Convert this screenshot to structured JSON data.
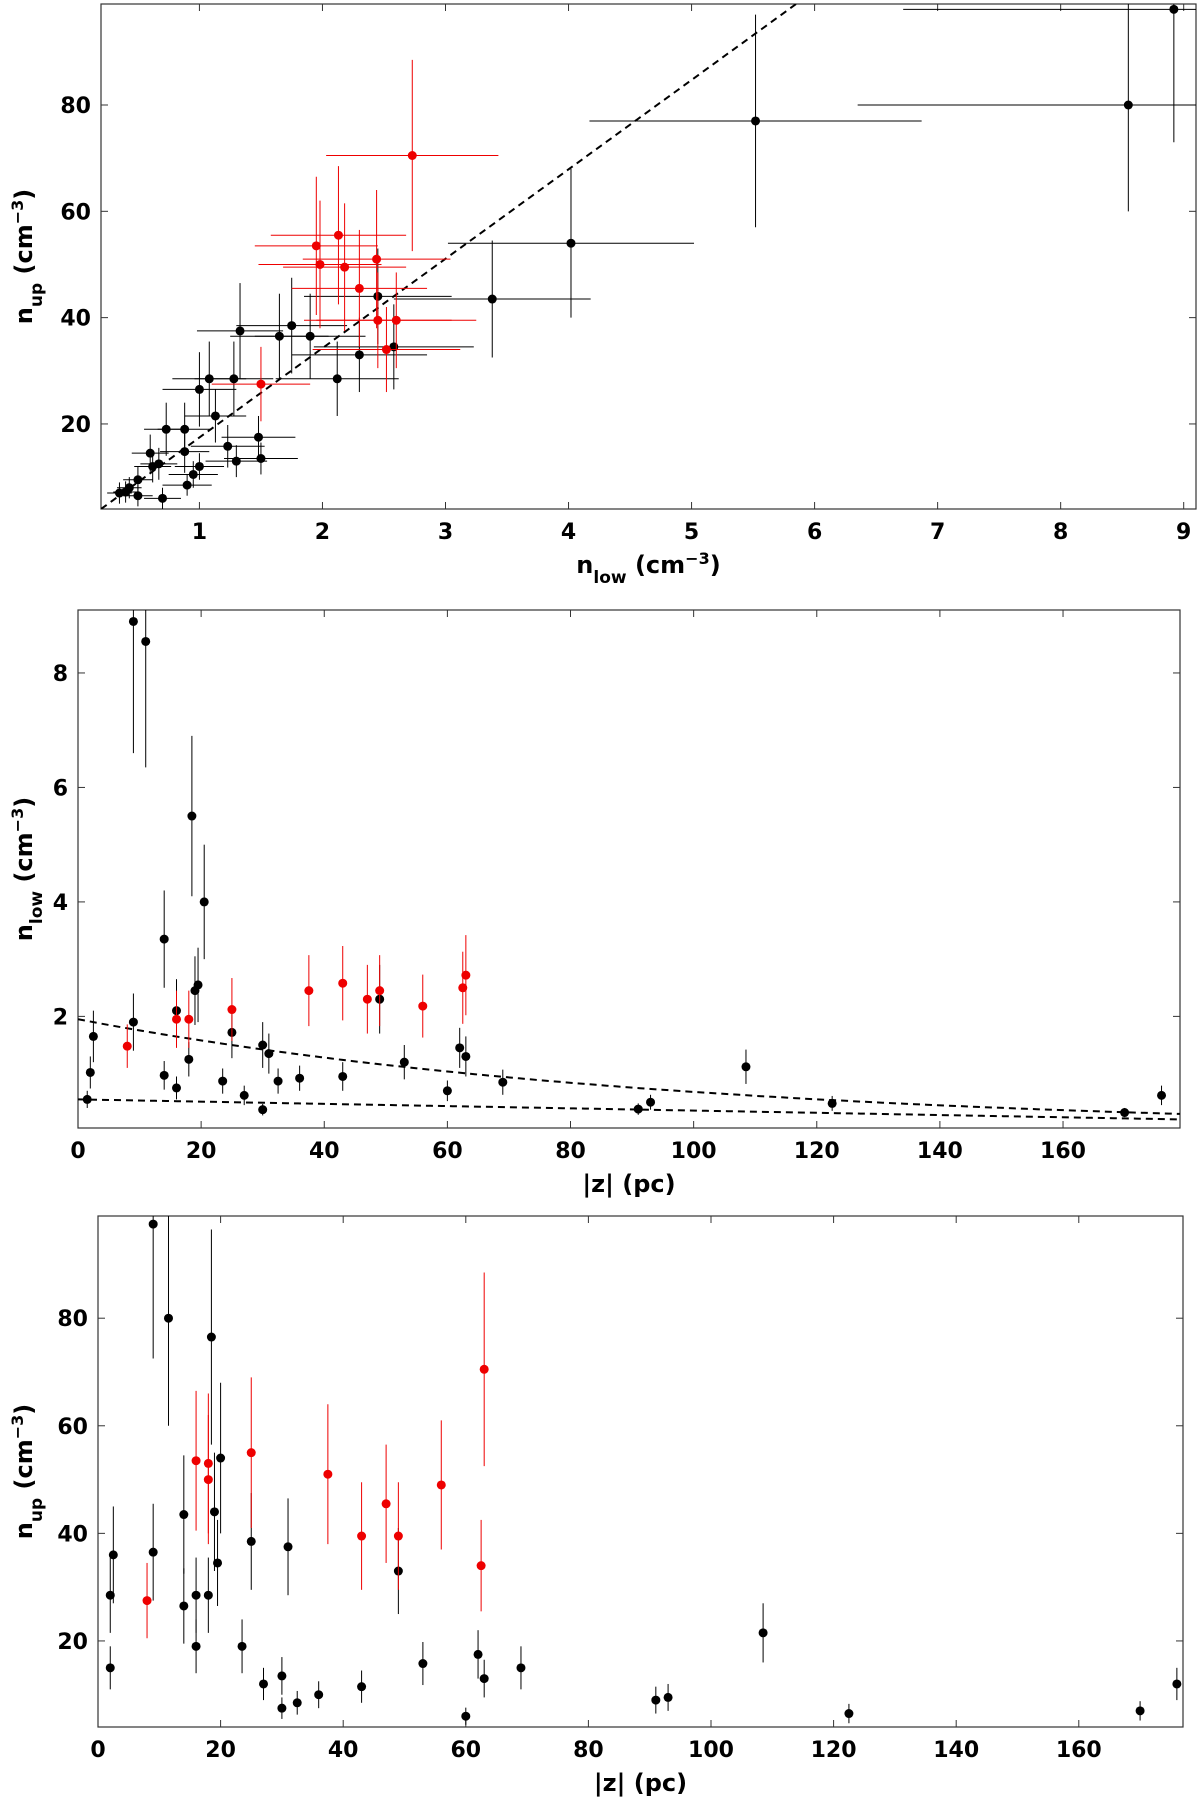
{
  "chart_data": [
    {
      "type": "scatter",
      "id": "panel1",
      "title": "",
      "xlabel": {
        "main": "n",
        "sub": "low",
        "unit": " (cm",
        "sup": "−3",
        "close": ")"
      },
      "ylabel": {
        "main": "n",
        "sub": "up",
        "unit": " (cm",
        "sup": "−3",
        "close": ")"
      },
      "xlim": [
        0.2,
        9.1
      ],
      "ylim": [
        4,
        99
      ],
      "xticks": [
        1,
        2,
        3,
        4,
        5,
        6,
        7,
        8,
        9
      ],
      "yticks": [
        20,
        40,
        60,
        80
      ],
      "colors": {
        "black": "#000000",
        "red": "#ee0000"
      },
      "lines": [
        {
          "name": "one-to-one-ratio-line",
          "x": [
            0.2,
            5.85
          ],
          "y": [
            4,
            99
          ],
          "style": "dashed"
        }
      ],
      "series": [
        {
          "name": "black",
          "points": [
            [
              8.92,
              98,
              2.2,
              25
            ],
            [
              8.55,
              80,
              2.2,
              20
            ],
            [
              5.52,
              77,
              1.35,
              20
            ],
            [
              4.02,
              54,
              1.0,
              14
            ],
            [
              3.38,
              43.5,
              0.8,
              11
            ],
            [
              2.45,
              44,
              0.6,
              9
            ],
            [
              2.3,
              33,
              0.55,
              7
            ],
            [
              2.58,
              34.5,
              0.65,
              8
            ],
            [
              2.12,
              28.5,
              0.5,
              7
            ],
            [
              1.9,
              36.5,
              0.45,
              8
            ],
            [
              1.75,
              38.5,
              0.45,
              9
            ],
            [
              1.65,
              36.5,
              0.4,
              8
            ],
            [
              1.33,
              37.5,
              0.35,
              9
            ],
            [
              1.28,
              28.5,
              0.32,
              7
            ],
            [
              1.08,
              28.5,
              0.3,
              7
            ],
            [
              1.0,
              26.5,
              0.3,
              7
            ],
            [
              1.13,
              21.5,
              0.25,
              5
            ],
            [
              1.48,
              17.5,
              0.3,
              4
            ],
            [
              1.5,
              13.5,
              0.3,
              3
            ],
            [
              1.23,
              15.8,
              0.3,
              4
            ],
            [
              1.3,
              13.0,
              0.25,
              3
            ],
            [
              0.95,
              10.5,
              0.2,
              2.5
            ],
            [
              1.0,
              12.0,
              0.2,
              2.5
            ],
            [
              0.9,
              8.5,
              0.2,
              2
            ],
            [
              0.88,
              19.0,
              0.22,
              5
            ],
            [
              0.88,
              14.8,
              0.2,
              4
            ],
            [
              0.73,
              19.0,
              0.18,
              5
            ],
            [
              0.6,
              14.5,
              0.15,
              3.5
            ],
            [
              0.62,
              12.0,
              0.15,
              3
            ],
            [
              0.67,
              12.5,
              0.15,
              3
            ],
            [
              0.5,
              9.5,
              0.12,
              2.5
            ],
            [
              0.5,
              6.5,
              0.12,
              2
            ],
            [
              0.7,
              6.0,
              0.15,
              2
            ],
            [
              0.43,
              8.0,
              0.1,
              2
            ],
            [
              0.35,
              7.0,
              0.1,
              2
            ],
            [
              0.4,
              7.2,
              0.1,
              2
            ]
          ]
        },
        {
          "name": "red",
          "points": [
            [
              2.73,
              70.5,
              0.7,
              18
            ],
            [
              1.95,
              53.5,
              0.5,
              13
            ],
            [
              2.13,
              55.5,
              0.55,
              13
            ],
            [
              1.98,
              50.0,
              0.5,
              12
            ],
            [
              2.18,
              49.5,
              0.5,
              12
            ],
            [
              2.44,
              51.0,
              0.6,
              13
            ],
            [
              2.3,
              45.5,
              0.55,
              11
            ],
            [
              2.45,
              39.5,
              0.6,
              9
            ],
            [
              2.6,
              39.5,
              0.65,
              9
            ],
            [
              2.52,
              34.0,
              0.6,
              8
            ],
            [
              1.5,
              27.5,
              0.4,
              7
            ]
          ]
        }
      ]
    },
    {
      "type": "scatter",
      "id": "panel2",
      "title": "",
      "xlabel": {
        "main": "|z| (pc)"
      },
      "ylabel": {
        "main": "n",
        "sub": "low",
        "unit": " (cm",
        "sup": "−3",
        "close": ")"
      },
      "xlim": [
        0,
        179
      ],
      "ylim": [
        0.05,
        9.1
      ],
      "xticks": [
        0,
        20,
        40,
        60,
        80,
        100,
        120,
        140,
        160
      ],
      "yticks": [
        2,
        4,
        6,
        8
      ],
      "colors": {
        "black": "#000000",
        "red": "#ee0000"
      },
      "curves": [
        {
          "name": "upper-fit-curve",
          "model": "exp",
          "a": 1.95,
          "scale": 95,
          "style": "dashed"
        },
        {
          "name": "lower-fit-curve",
          "model": "linear",
          "y0": 0.55,
          "y1": 0.2,
          "style": "dashed"
        }
      ],
      "series": [
        {
          "name": "black",
          "points": [
            [
              9.0,
              8.9,
              2.3
            ],
            [
              11.0,
              8.55,
              2.2
            ],
            [
              18.5,
              5.5,
              1.4
            ],
            [
              20.5,
              4.0,
              1.0
            ],
            [
              14.0,
              3.35,
              0.85
            ],
            [
              19.5,
              2.55,
              0.65
            ],
            [
              19.0,
              2.45,
              0.6
            ],
            [
              49.0,
              2.3,
              0.6
            ],
            [
              16.0,
              2.1,
              0.55
            ],
            [
              9.0,
              1.9,
              0.5
            ],
            [
              2.5,
              1.65,
              0.45
            ],
            [
              25.0,
              1.72,
              0.45
            ],
            [
              30.0,
              1.5,
              0.4
            ],
            [
              31.0,
              1.35,
              0.35
            ],
            [
              62.0,
              1.45,
              0.35
            ],
            [
              63.0,
              1.3,
              0.35
            ],
            [
              53.0,
              1.2,
              0.3
            ],
            [
              18.0,
              1.25,
              0.3
            ],
            [
              108.5,
              1.12,
              0.3
            ],
            [
              2.0,
              1.02,
              0.28
            ],
            [
              14.0,
              0.97,
              0.25
            ],
            [
              23.5,
              0.87,
              0.22
            ],
            [
              32.5,
              0.87,
              0.22
            ],
            [
              36.0,
              0.92,
              0.22
            ],
            [
              43.0,
              0.95,
              0.25
            ],
            [
              69.0,
              0.85,
              0.22
            ],
            [
              16.0,
              0.75,
              0.2
            ],
            [
              27.0,
              0.62,
              0.17
            ],
            [
              60.0,
              0.7,
              0.18
            ],
            [
              1.5,
              0.55,
              0.15
            ],
            [
              30.0,
              0.37,
              0.1
            ],
            [
              91.0,
              0.38,
              0.1
            ],
            [
              93.0,
              0.5,
              0.13
            ],
            [
              122.5,
              0.48,
              0.13
            ],
            [
              170.0,
              0.32,
              0.08
            ],
            [
              176.0,
              0.62,
              0.17
            ]
          ]
        },
        {
          "name": "red",
          "points": [
            [
              8.0,
              1.48,
              0.38
            ],
            [
              16.0,
              1.95,
              0.5
            ],
            [
              18.0,
              1.95,
              0.5
            ],
            [
              25.0,
              2.12,
              0.55
            ],
            [
              37.5,
              2.45,
              0.62
            ],
            [
              43.0,
              2.58,
              0.65
            ],
            [
              47.0,
              2.3,
              0.6
            ],
            [
              49.0,
              2.45,
              0.62
            ],
            [
              56.0,
              2.18,
              0.55
            ],
            [
              62.5,
              2.5,
              0.63
            ],
            [
              63.0,
              2.72,
              0.7
            ]
          ]
        }
      ]
    },
    {
      "type": "scatter",
      "id": "panel3",
      "title": "",
      "xlabel": {
        "main": "|z| (pc)"
      },
      "ylabel": {
        "main": "n",
        "sub": "up",
        "unit": " (cm",
        "sup": "−3",
        "close": ")"
      },
      "xlim": [
        0,
        177
      ],
      "ylim": [
        4,
        99
      ],
      "xticks": [
        0,
        20,
        40,
        60,
        80,
        100,
        120,
        140,
        160
      ],
      "yticks": [
        20,
        40,
        60,
        80
      ],
      "colors": {
        "black": "#000000",
        "red": "#ee0000"
      },
      "series": [
        {
          "name": "black",
          "points": [
            [
              9.0,
              97.5,
              25
            ],
            [
              11.5,
              80.0,
              20
            ],
            [
              18.5,
              76.5,
              20
            ],
            [
              20.0,
              54.0,
              14
            ],
            [
              14.0,
              43.5,
              11
            ],
            [
              19.0,
              44.0,
              11
            ],
            [
              25.0,
              38.5,
              9
            ],
            [
              31.0,
              37.5,
              9
            ],
            [
              9.0,
              36.5,
              9
            ],
            [
              2.5,
              36.0,
              9
            ],
            [
              19.5,
              34.5,
              8
            ],
            [
              49.0,
              33.0,
              8
            ],
            [
              2.0,
              28.5,
              7
            ],
            [
              16.0,
              28.5,
              7
            ],
            [
              18.0,
              28.5,
              7
            ],
            [
              14.0,
              26.5,
              7
            ],
            [
              108.5,
              21.5,
              5.5
            ],
            [
              16.0,
              19.0,
              5
            ],
            [
              23.5,
              19.0,
              5
            ],
            [
              62.0,
              17.5,
              4.5
            ],
            [
              53.0,
              15.8,
              4
            ],
            [
              2.0,
              15.0,
              4
            ],
            [
              69.0,
              15.0,
              4
            ],
            [
              63.0,
              13.0,
              3.5
            ],
            [
              30.0,
              13.5,
              3.5
            ],
            [
              27.0,
              12.0,
              3
            ],
            [
              43.0,
              11.5,
              3
            ],
            [
              176.0,
              12.0,
              3
            ],
            [
              36.0,
              10.0,
              2.5
            ],
            [
              93.0,
              9.5,
              2.5
            ],
            [
              91.0,
              9.0,
              2.5
            ],
            [
              32.5,
              8.5,
              2.2
            ],
            [
              30.0,
              7.5,
              2
            ],
            [
              122.5,
              6.5,
              1.8
            ],
            [
              170.0,
              7.0,
              1.8
            ],
            [
              60.0,
              6.0,
              1.6
            ]
          ]
        },
        {
          "name": "red",
          "points": [
            [
              63.0,
              70.5,
              18
            ],
            [
              25.0,
              55.0,
              14
            ],
            [
              16.0,
              53.5,
              13
            ],
            [
              18.0,
              53.0,
              13
            ],
            [
              18.0,
              50.0,
              12
            ],
            [
              37.5,
              51.0,
              13
            ],
            [
              56.0,
              49.0,
              12
            ],
            [
              47.0,
              45.5,
              11
            ],
            [
              43.0,
              39.5,
              10
            ],
            [
              49.0,
              39.5,
              10
            ],
            [
              62.5,
              34.0,
              8.5
            ],
            [
              8.0,
              27.5,
              7
            ]
          ]
        }
      ]
    }
  ]
}
